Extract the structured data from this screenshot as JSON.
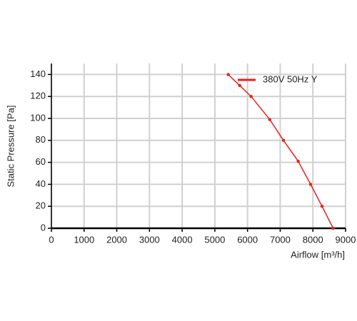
{
  "chart_data": {
    "type": "line",
    "xlabel": "Airflow [m³/h]",
    "ylabel": "Static Pressure [Pa]",
    "xlim": [
      0,
      9000
    ],
    "xticks": [
      0,
      1000,
      2000,
      3000,
      4000,
      5000,
      6000,
      7000,
      8000,
      9000
    ],
    "ylim": [
      0,
      150
    ],
    "yticks": [
      0,
      20,
      40,
      60,
      80,
      100,
      120,
      140
    ],
    "grid": true,
    "legend": "upper right",
    "series": [
      {
        "name": "380V 50Hz Y",
        "color": "#e8201c",
        "label_color": "#e0208c",
        "x": [
          5410,
          5760,
          6110,
          6680,
          7100,
          7550,
          7930,
          8280,
          8620
        ],
        "values": [
          140,
          130,
          120,
          99,
          80,
          61,
          40,
          20,
          0
        ]
      }
    ]
  }
}
